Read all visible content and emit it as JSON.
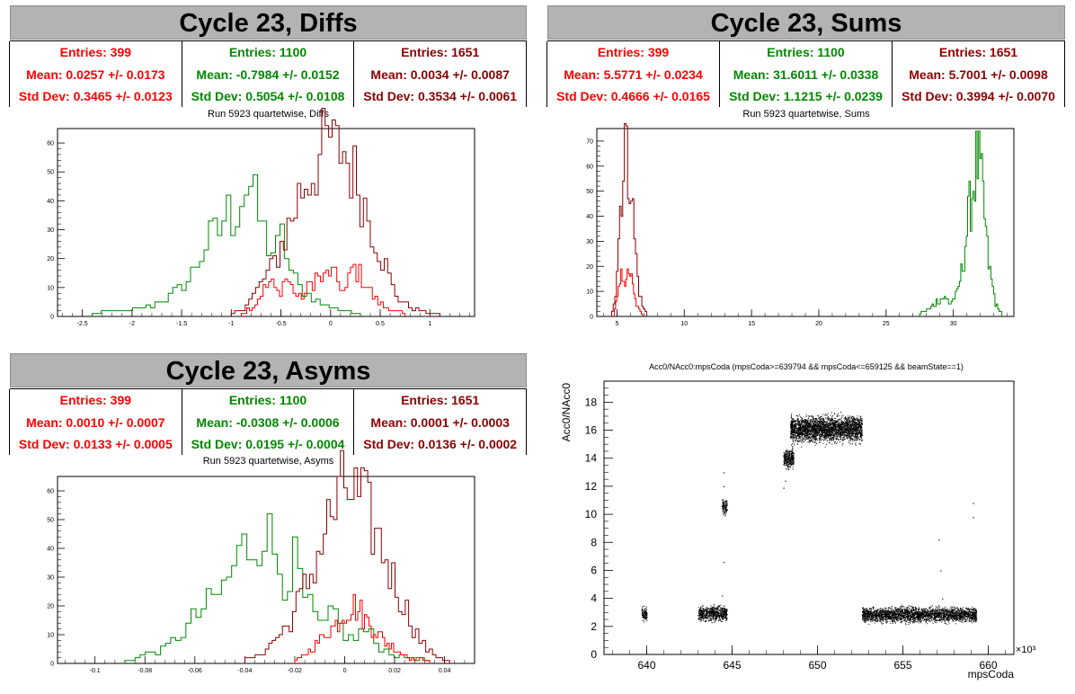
{
  "colors": {
    "red": "#ff0000",
    "green": "#008800",
    "darkred": "#8b0000",
    "banner_bg": "#b3b3b3"
  },
  "panels": [
    {
      "id": "diffs",
      "banner": "Cycle 23, Diffs",
      "subtitle": "Run 5923 quartetwise, Diffs",
      "stats": [
        {
          "color": "red",
          "entries": "Entries: 399",
          "mean": "Mean: 0.0257 +/- 0.0173",
          "std": "Std Dev: 0.3465 +/- 0.0123"
        },
        {
          "color": "green",
          "entries": "Entries: 1100",
          "mean": "Mean: -0.7984 +/- 0.0152",
          "std": "Std Dev: 0.5054 +/- 0.0108"
        },
        {
          "color": "darkred",
          "entries": "Entries: 1651",
          "mean": "Mean: 0.0034 +/- 0.0087",
          "std": "Std Dev: 0.3534 +/- 0.0061"
        }
      ]
    },
    {
      "id": "sums",
      "banner": "Cycle 23, Sums",
      "subtitle": "Run 5923 quartetwise, Sums",
      "stats": [
        {
          "color": "red",
          "entries": "Entries: 399",
          "mean": "Mean: 5.5771 +/- 0.0234",
          "std": "Std Dev: 0.4666 +/- 0.0165"
        },
        {
          "color": "green",
          "entries": "Entries: 1100",
          "mean": "Mean: 31.6011 +/- 0.0338",
          "std": "Std Dev: 1.1215 +/- 0.0239"
        },
        {
          "color": "darkred",
          "entries": "Entries: 1651",
          "mean": "Mean: 5.7001 +/- 0.0098",
          "std": "Std Dev: 0.3994 +/- 0.0070"
        }
      ]
    },
    {
      "id": "asyms",
      "banner": "Cycle 23, Asyms",
      "subtitle": "Run 5923 quartetwise, Asyms",
      "stats": [
        {
          "color": "red",
          "entries": "Entries: 399",
          "mean": "Mean: 0.0010 +/- 0.0007",
          "std": "Std Dev: 0.0133 +/- 0.0005"
        },
        {
          "color": "green",
          "entries": "Entries: 1100",
          "mean": "Mean: -0.0308 +/- 0.0006",
          "std": "Std Dev: 0.0195 +/- 0.0004"
        },
        {
          "color": "darkred",
          "entries": "Entries: 1651",
          "mean": "Mean: 0.0001 +/- 0.0003",
          "std": "Std Dev: 0.0136 +/- 0.0002"
        }
      ]
    }
  ],
  "scatter_title": "Acc0/NAcc0:mpsCoda (mpsCoda>=639794 && mpsCoda<=659125 && beamState==1)",
  "chart_data": [
    {
      "type": "histogram",
      "title": "Run 5923 quartetwise, Diffs",
      "xlim": [
        -2.75,
        1.45
      ],
      "ylim": [
        0,
        65
      ],
      "xticks": [
        -2.5,
        -2,
        -1.5,
        -1,
        -0.5,
        0,
        0.5,
        1
      ],
      "yticks": [
        0,
        10,
        20,
        30,
        40,
        50,
        60
      ],
      "series": [
        {
          "color": "green",
          "points": [
            [
              -2.4,
              1
            ],
            [
              -2.2,
              2
            ],
            [
              -2.0,
              2
            ],
            [
              -1.8,
              4
            ],
            [
              -1.6,
              7
            ],
            [
              -1.5,
              10
            ],
            [
              -1.4,
              14
            ],
            [
              -1.3,
              22
            ],
            [
              -1.2,
              27
            ],
            [
              -1.1,
              30
            ],
            [
              -1.05,
              38
            ],
            [
              -1.0,
              33
            ],
            [
              -0.9,
              42
            ],
            [
              -0.82,
              47
            ],
            [
              -0.75,
              38
            ],
            [
              -0.7,
              32
            ],
            [
              -0.62,
              25
            ],
            [
              -0.55,
              22
            ],
            [
              -0.48,
              28
            ],
            [
              -0.4,
              16
            ],
            [
              -0.32,
              10
            ],
            [
              -0.25,
              8
            ],
            [
              -0.15,
              6
            ],
            [
              -0.05,
              4
            ],
            [
              0.05,
              3
            ],
            [
              0.15,
              2
            ],
            [
              0.3,
              1
            ]
          ]
        },
        {
          "color": "red",
          "points": [
            [
              -0.9,
              1
            ],
            [
              -0.75,
              4
            ],
            [
              -0.68,
              9
            ],
            [
              -0.6,
              12
            ],
            [
              -0.52,
              8
            ],
            [
              -0.45,
              14
            ],
            [
              -0.4,
              10
            ],
            [
              -0.3,
              6
            ],
            [
              -0.22,
              10
            ],
            [
              -0.15,
              14
            ],
            [
              -0.08,
              12
            ],
            [
              0.0,
              16
            ],
            [
              0.08,
              12
            ],
            [
              0.15,
              8
            ],
            [
              0.22,
              17
            ],
            [
              0.3,
              14
            ],
            [
              0.38,
              10
            ],
            [
              0.45,
              6
            ],
            [
              0.55,
              3
            ],
            [
              0.65,
              2
            ],
            [
              0.75,
              1
            ]
          ]
        },
        {
          "color": "darkred",
          "points": [
            [
              -1.0,
              1
            ],
            [
              -0.9,
              2
            ],
            [
              -0.8,
              6
            ],
            [
              -0.72,
              10
            ],
            [
              -0.6,
              16
            ],
            [
              -0.5,
              24
            ],
            [
              -0.42,
              31
            ],
            [
              -0.35,
              38
            ],
            [
              -0.28,
              45
            ],
            [
              -0.2,
              50
            ],
            [
              -0.12,
              54
            ],
            [
              -0.05,
              58
            ],
            [
              0.0,
              62
            ],
            [
              0.05,
              55
            ],
            [
              0.12,
              60
            ],
            [
              0.18,
              53
            ],
            [
              0.25,
              48
            ],
            [
              0.32,
              42
            ],
            [
              0.4,
              33
            ],
            [
              0.48,
              25
            ],
            [
              0.56,
              17
            ],
            [
              0.64,
              9
            ],
            [
              0.72,
              5
            ],
            [
              0.8,
              3
            ],
            [
              0.9,
              2
            ],
            [
              1.1,
              1
            ]
          ]
        }
      ]
    },
    {
      "type": "histogram",
      "title": "Run 5923 quartetwise, Sums",
      "xlim": [
        3.5,
        34.5
      ],
      "ylim": [
        0,
        75
      ],
      "xticks": [
        5,
        10,
        15,
        20,
        25,
        30
      ],
      "yticks": [
        0,
        10,
        20,
        30,
        40,
        50,
        60,
        70
      ],
      "series": [
        {
          "color": "green",
          "points": [
            [
              27.5,
              1
            ],
            [
              28.2,
              3
            ],
            [
              28.8,
              6
            ],
            [
              29.3,
              8
            ],
            [
              29.8,
              5
            ],
            [
              30.3,
              9
            ],
            [
              30.7,
              20
            ],
            [
              31.0,
              34
            ],
            [
              31.3,
              46
            ],
            [
              31.6,
              56
            ],
            [
              31.8,
              63
            ],
            [
              32.0,
              57
            ],
            [
              32.2,
              48
            ],
            [
              32.4,
              35
            ],
            [
              32.6,
              22
            ],
            [
              32.9,
              12
            ],
            [
              33.2,
              4
            ],
            [
              33.6,
              1
            ]
          ]
        },
        {
          "color": "red",
          "points": [
            [
              4.8,
              2
            ],
            [
              5.1,
              8
            ],
            [
              5.3,
              15
            ],
            [
              5.5,
              18
            ],
            [
              5.7,
              12
            ],
            [
              5.9,
              20
            ],
            [
              6.1,
              14
            ],
            [
              6.3,
              7
            ],
            [
              6.6,
              3
            ],
            [
              6.9,
              1
            ]
          ]
        },
        {
          "color": "darkred",
          "points": [
            [
              4.6,
              1
            ],
            [
              4.9,
              10
            ],
            [
              5.1,
              28
            ],
            [
              5.3,
              50
            ],
            [
              5.5,
              60
            ],
            [
              5.6,
              72
            ],
            [
              5.8,
              55
            ],
            [
              6.0,
              62
            ],
            [
              6.2,
              40
            ],
            [
              6.4,
              25
            ],
            [
              6.6,
              12
            ],
            [
              6.9,
              4
            ],
            [
              7.2,
              1
            ]
          ]
        }
      ]
    },
    {
      "type": "histogram",
      "title": "Run 5923 quartetwise, Asyms",
      "xlim": [
        -0.115,
        0.052
      ],
      "ylim": [
        0,
        65
      ],
      "xticks": [
        -0.1,
        -0.08,
        -0.06,
        -0.04,
        -0.02,
        0,
        0.02,
        0.04
      ],
      "yticks": [
        0,
        10,
        20,
        30,
        40,
        50,
        60
      ],
      "series": [
        {
          "color": "green",
          "points": [
            [
              -0.088,
              1
            ],
            [
              -0.08,
              3
            ],
            [
              -0.072,
              5
            ],
            [
              -0.065,
              10
            ],
            [
              -0.058,
              18
            ],
            [
              -0.052,
              22
            ],
            [
              -0.048,
              27
            ],
            [
              -0.044,
              34
            ],
            [
              -0.04,
              40
            ],
            [
              -0.036,
              42
            ],
            [
              -0.032,
              48
            ],
            [
              -0.028,
              38
            ],
            [
              -0.024,
              30
            ],
            [
              -0.02,
              35
            ],
            [
              -0.016,
              22
            ],
            [
              -0.012,
              16
            ],
            [
              -0.008,
              12
            ],
            [
              -0.004,
              18
            ],
            [
              0.0,
              10
            ],
            [
              0.004,
              8
            ],
            [
              0.008,
              12
            ],
            [
              0.012,
              8
            ],
            [
              0.016,
              5
            ],
            [
              0.02,
              3
            ],
            [
              0.026,
              2
            ],
            [
              0.034,
              1
            ]
          ]
        },
        {
          "color": "red",
          "points": [
            [
              -0.02,
              1
            ],
            [
              -0.016,
              3
            ],
            [
              -0.012,
              6
            ],
            [
              -0.008,
              10
            ],
            [
              -0.004,
              13
            ],
            [
              0.0,
              18
            ],
            [
              0.004,
              20
            ],
            [
              0.008,
              16
            ],
            [
              0.012,
              12
            ],
            [
              0.016,
              8
            ],
            [
              0.02,
              5
            ],
            [
              0.026,
              2
            ],
            [
              0.034,
              1
            ]
          ]
        },
        {
          "color": "darkred",
          "points": [
            [
              -0.04,
              1
            ],
            [
              -0.034,
              3
            ],
            [
              -0.028,
              8
            ],
            [
              -0.022,
              14
            ],
            [
              -0.018,
              22
            ],
            [
              -0.014,
              30
            ],
            [
              -0.01,
              40
            ],
            [
              -0.006,
              50
            ],
            [
              -0.002,
              56
            ],
            [
              0.0,
              62
            ],
            [
              0.004,
              58
            ],
            [
              0.008,
              54
            ],
            [
              0.012,
              46
            ],
            [
              0.016,
              38
            ],
            [
              0.02,
              28
            ],
            [
              0.024,
              20
            ],
            [
              0.028,
              12
            ],
            [
              0.032,
              6
            ],
            [
              0.036,
              3
            ],
            [
              0.042,
              1
            ]
          ]
        }
      ]
    },
    {
      "type": "scatter",
      "title": "Acc0/NAcc0:mpsCoda (mpsCoda>=639794 && mpsCoda<=659125 && beamState==1)",
      "xlabel": "mpsCoda",
      "ylabel": "Acc0/NAcc0",
      "x_multiplier": "×10³",
      "xlim": [
        637.5,
        661.5
      ],
      "ylim": [
        0,
        19.5
      ],
      "xticks": [
        640,
        645,
        650,
        655,
        660
      ],
      "yticks": [
        0,
        2,
        4,
        6,
        8,
        10,
        12,
        14,
        16,
        18
      ],
      "clusters": [
        {
          "x": [
            639.7,
            640.0
          ],
          "y": [
            2.2,
            3.6
          ]
        },
        {
          "x": [
            643.0,
            644.7
          ],
          "y": [
            2.2,
            3.7
          ]
        },
        {
          "x": [
            644.4,
            644.7
          ],
          "y": [
            9.8,
            11.3
          ]
        },
        {
          "x": [
            648.0,
            648.6
          ],
          "y": [
            13.0,
            15.0
          ]
        },
        {
          "x": [
            648.4,
            652.6
          ],
          "y": [
            14.8,
            17.4
          ]
        },
        {
          "x": [
            652.6,
            659.3
          ],
          "y": [
            2.1,
            3.6
          ]
        }
      ],
      "outliers": [
        [
          644.5,
          13.0
        ],
        [
          644.5,
          12.0
        ],
        [
          644.5,
          6.6
        ],
        [
          648.0,
          11.9
        ],
        [
          648.1,
          12.4
        ],
        [
          657.1,
          8.2
        ],
        [
          657.2,
          6.0
        ],
        [
          659.1,
          10.8
        ],
        [
          659.1,
          9.8
        ],
        [
          644.4,
          4.2
        ],
        [
          657.3,
          4.0
        ]
      ]
    }
  ]
}
